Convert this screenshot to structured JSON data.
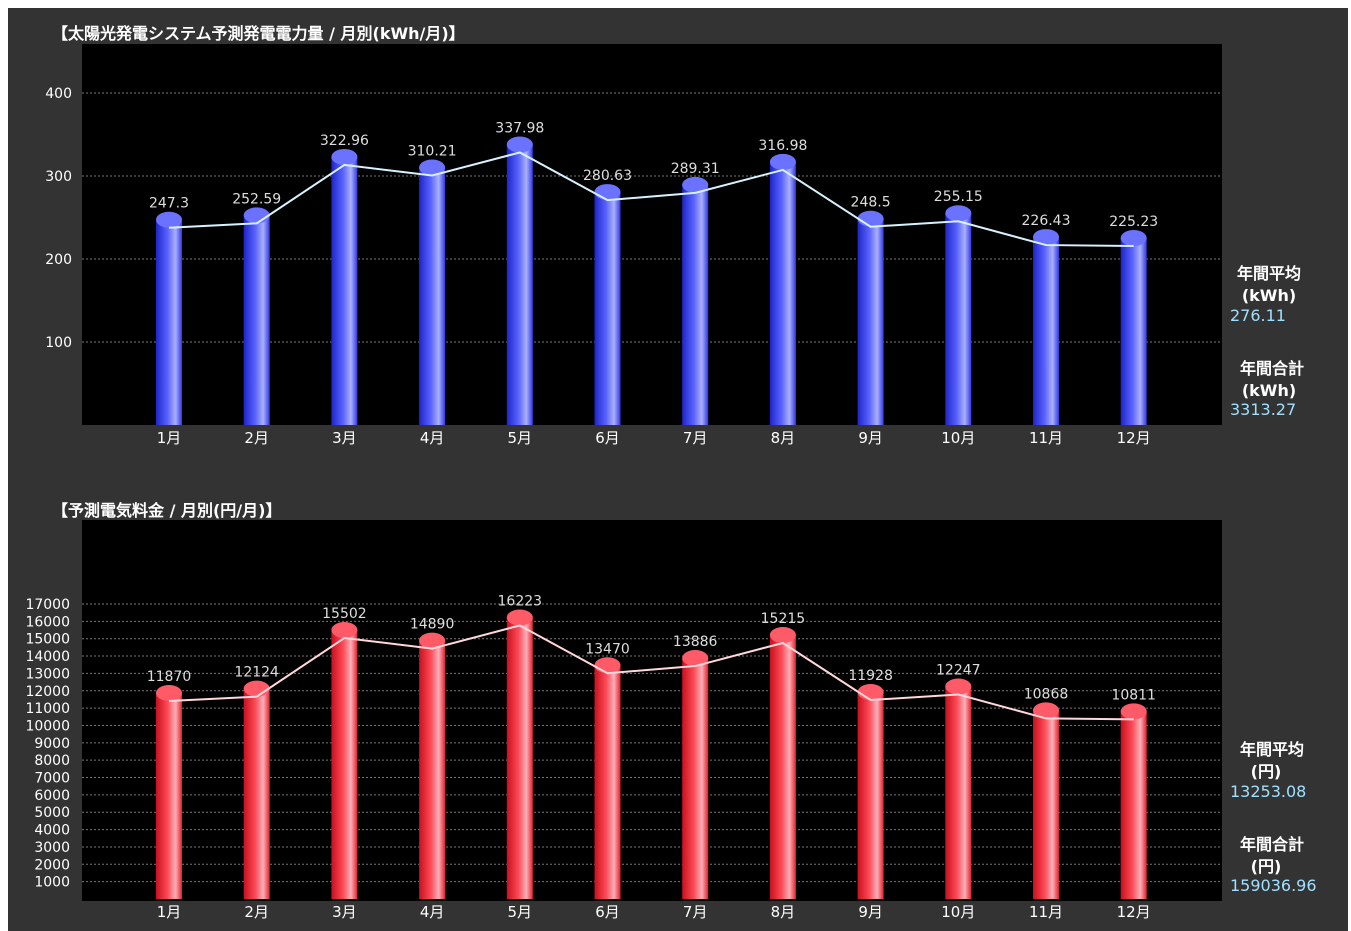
{
  "chart_data": [
    {
      "type": "bar",
      "title": "【太陽光発電システム予測発電電力量 / 月別(kWh/月)】",
      "categories": [
        "1月",
        "2月",
        "3月",
        "4月",
        "5月",
        "6月",
        "7月",
        "8月",
        "9月",
        "10月",
        "11月",
        "12月"
      ],
      "values": [
        247.3,
        252.59,
        322.96,
        310.21,
        337.98,
        280.63,
        289.31,
        316.98,
        248.5,
        255.15,
        226.43,
        225.23
      ],
      "data_labels": [
        "247.3",
        "252.59",
        "322.96",
        "310.21",
        "337.98",
        "280.63",
        "289.31",
        "316.98",
        "248.5",
        "255.15",
        "226.43",
        "225.23"
      ],
      "yticks": [
        "400",
        "300",
        "200",
        "100"
      ],
      "ylim": [
        0,
        400
      ],
      "bar_color": "#3f48ff",
      "line_color": "#d7f2ff",
      "grid": true,
      "summary": {
        "avg_label": "年間平均",
        "avg_unit": "(kWh)",
        "avg_value": "276.11",
        "total_label": "年間合計",
        "total_unit": "(kWh)",
        "total_value": "3313.27"
      }
    },
    {
      "type": "bar",
      "title": "【予測電気料金 / 月別(円/月)】",
      "categories": [
        "1月",
        "2月",
        "3月",
        "4月",
        "5月",
        "6月",
        "7月",
        "8月",
        "9月",
        "10月",
        "11月",
        "12月"
      ],
      "values": [
        11870,
        12124,
        15502,
        14890,
        16223,
        13470,
        13886,
        15215,
        11928,
        12247,
        10868,
        10811
      ],
      "data_labels": [
        "11870",
        "12124",
        "15502",
        "14890",
        "16223",
        "13470",
        "13886",
        "15215",
        "11928",
        "12247",
        "10868",
        "10811"
      ],
      "yticks": [
        "17000",
        "16000",
        "15000",
        "14000",
        "13000",
        "12000",
        "11000",
        "10000",
        "9000",
        "8000",
        "7000",
        "6000",
        "5000",
        "4000",
        "3000",
        "2000",
        "1000"
      ],
      "ylim": [
        0,
        17000
      ],
      "bar_color": "#ff3040",
      "line_color": "#ffd7dc",
      "grid": true,
      "summary": {
        "avg_label": "年間平均",
        "avg_unit": "(円)",
        "avg_value": "13253.08",
        "total_label": "年間合計",
        "total_unit": "(円)",
        "total_value": "159036.96"
      }
    }
  ]
}
